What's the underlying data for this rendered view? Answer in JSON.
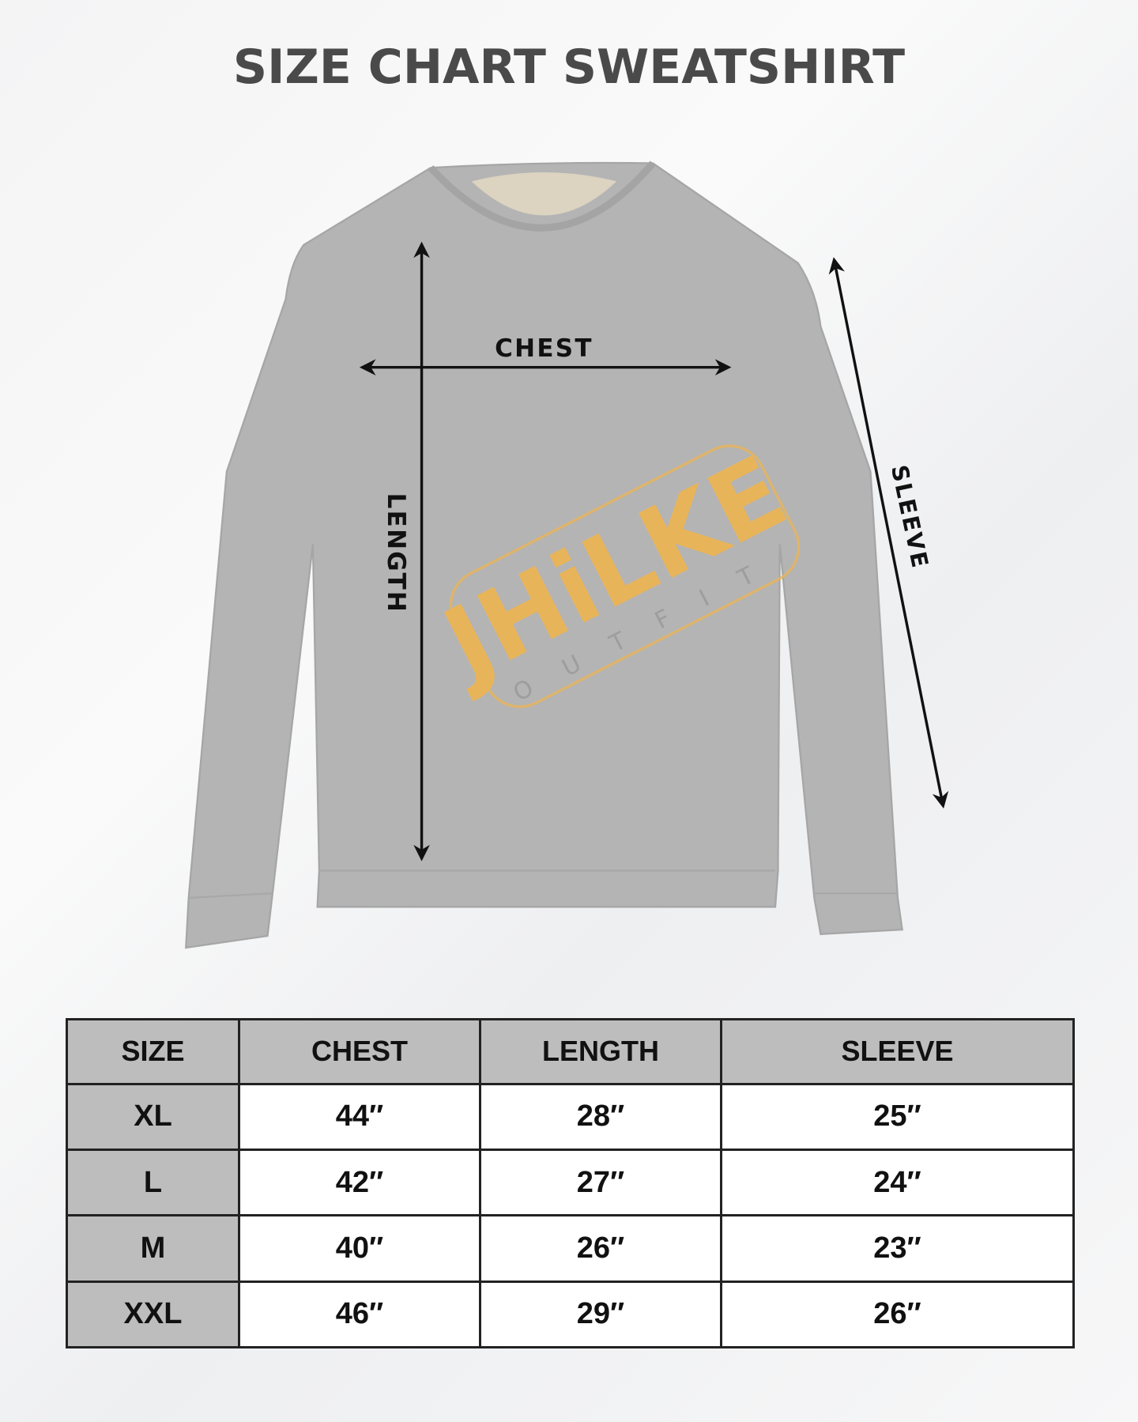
{
  "title": "SIZE CHART SWEATSHIRT",
  "diagram": {
    "chest_label": "CHEST",
    "length_label": "LENGTH",
    "sleeve_label": "SLEEVE",
    "garment_color": "#b4b4b4",
    "logo": {
      "brand": "JHiLKE",
      "tagline": "OUTFIT",
      "color": "#e8b45a"
    }
  },
  "table": {
    "headers": [
      "SIZE",
      "CHEST",
      "LENGTH",
      "SLEEVE"
    ],
    "rows": [
      [
        "XL",
        "44″",
        "28″",
        "25″"
      ],
      [
        "L",
        "42″",
        "27″",
        "24″"
      ],
      [
        "M",
        "40″",
        "26″",
        "23″"
      ],
      [
        "XXL",
        "46″",
        "29″",
        "26″"
      ]
    ]
  }
}
